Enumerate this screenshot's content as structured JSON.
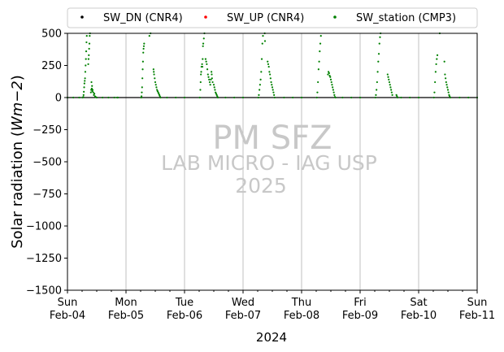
{
  "chart_data": {
    "type": "scatter",
    "title": "",
    "xlabel": "2024",
    "ylabel_prefix": "Solar radiation (",
    "ylabel_unit": "Wm−2",
    "ylabel_suffix": ")",
    "ylim": [
      -1500,
      500
    ],
    "y_ticks": [
      500,
      250,
      0,
      -250,
      -500,
      -750,
      -1000,
      -1250,
      -1500
    ],
    "x_range": [
      "2024-02-04",
      "2024-02-11"
    ],
    "x_ticks": [
      {
        "day": "Sun",
        "date": "Feb-04"
      },
      {
        "day": "Mon",
        "date": "Feb-05"
      },
      {
        "day": "Tue",
        "date": "Feb-06"
      },
      {
        "day": "Wed",
        "date": "Feb-07"
      },
      {
        "day": "Thu",
        "date": "Feb-08"
      },
      {
        "day": "Fri",
        "date": "Feb-09"
      },
      {
        "day": "Sat",
        "date": "Feb-10"
      },
      {
        "day": "Sun",
        "date": "Feb-11"
      }
    ],
    "grid": "vertical at day ticks",
    "legend": {
      "placement": "top",
      "entries": [
        {
          "name": "SW_DN (CNR4)",
          "color": "#000000"
        },
        {
          "name": "SW_UP (CNR4)",
          "color": "#ff0000"
        },
        {
          "name": "SW_station (CMP3)",
          "color": "#008000"
        }
      ]
    },
    "watermark": {
      "line1": "PM SFZ",
      "line2": "LAB MICRO - IAG USP",
      "line3": "2025"
    },
    "series": [
      {
        "name": "SW_DN (CNR4)",
        "values": []
      },
      {
        "name": "SW_UP (CNR4)",
        "values": []
      },
      {
        "name": "SW_station (CMP3)",
        "values": [
          [
            0.0,
            0
          ],
          [
            0.1,
            0
          ],
          [
            0.2,
            0
          ],
          [
            0.26,
            0
          ],
          [
            0.27,
            5
          ],
          [
            0.275,
            20
          ],
          [
            0.28,
            45
          ],
          [
            0.285,
            80
          ],
          [
            0.29,
            110
          ],
          [
            0.295,
            130
          ],
          [
            0.3,
            150
          ],
          [
            0.305,
            200
          ],
          [
            0.31,
            250
          ],
          [
            0.315,
            300
          ],
          [
            0.32,
            360
          ],
          [
            0.325,
            430
          ],
          [
            0.33,
            480
          ],
          [
            0.355,
            260
          ],
          [
            0.36,
            300
          ],
          [
            0.365,
            330
          ],
          [
            0.37,
            380
          ],
          [
            0.375,
            420
          ],
          [
            0.38,
            480
          ],
          [
            0.385,
            500
          ],
          [
            0.4,
            40
          ],
          [
            0.405,
            60
          ],
          [
            0.41,
            120
          ],
          [
            0.415,
            70
          ],
          [
            0.42,
            90
          ],
          [
            0.425,
            50
          ],
          [
            0.43,
            60
          ],
          [
            0.44,
            40
          ],
          [
            0.45,
            20
          ],
          [
            0.46,
            30
          ],
          [
            0.47,
            10
          ],
          [
            0.48,
            5
          ],
          [
            0.49,
            2
          ],
          [
            0.5,
            0
          ],
          [
            0.6,
            0
          ],
          [
            0.7,
            0
          ],
          [
            0.8,
            0
          ],
          [
            0.85,
            0
          ],
          [
            0.86,
            0
          ],
          [
            1.26,
            0
          ],
          [
            1.265,
            10
          ],
          [
            1.27,
            40
          ],
          [
            1.275,
            80
          ],
          [
            1.28,
            150
          ],
          [
            1.285,
            220
          ],
          [
            1.29,
            280
          ],
          [
            1.295,
            350
          ],
          [
            1.3,
            380
          ],
          [
            1.305,
            400
          ],
          [
            1.31,
            420
          ],
          [
            1.4,
            480
          ],
          [
            1.42,
            500
          ],
          [
            1.47,
            220
          ],
          [
            1.475,
            200
          ],
          [
            1.48,
            180
          ],
          [
            1.49,
            150
          ],
          [
            1.5,
            120
          ],
          [
            1.51,
            100
          ],
          [
            1.52,
            80
          ],
          [
            1.53,
            60
          ],
          [
            1.54,
            50
          ],
          [
            1.55,
            40
          ],
          [
            1.56,
            30
          ],
          [
            1.57,
            20
          ],
          [
            1.58,
            10
          ],
          [
            1.59,
            0
          ],
          [
            1.7,
            0
          ],
          [
            1.85,
            0
          ],
          [
            2.0,
            0
          ],
          [
            2.26,
            0
          ],
          [
            2.27,
            60
          ],
          [
            2.275,
            120
          ],
          [
            2.28,
            180
          ],
          [
            2.285,
            200
          ],
          [
            2.29,
            240
          ],
          [
            2.3,
            260
          ],
          [
            2.305,
            240
          ],
          [
            2.31,
            300
          ],
          [
            2.315,
            400
          ],
          [
            2.32,
            420
          ],
          [
            2.33,
            460
          ],
          [
            2.34,
            500
          ],
          [
            2.36,
            300
          ],
          [
            2.37,
            280
          ],
          [
            2.38,
            260
          ],
          [
            2.39,
            220
          ],
          [
            2.4,
            180
          ],
          [
            2.41,
            160
          ],
          [
            2.42,
            140
          ],
          [
            2.43,
            120
          ],
          [
            2.44,
            100
          ],
          [
            2.45,
            140
          ],
          [
            2.46,
            200
          ],
          [
            2.465,
            180
          ],
          [
            2.47,
            150
          ],
          [
            2.48,
            120
          ],
          [
            2.5,
            100
          ],
          [
            2.51,
            80
          ],
          [
            2.52,
            60
          ],
          [
            2.53,
            40
          ],
          [
            2.54,
            30
          ],
          [
            2.55,
            20
          ],
          [
            2.56,
            10
          ],
          [
            2.57,
            0
          ],
          [
            2.7,
            0
          ],
          [
            2.85,
            0
          ],
          [
            3.0,
            0
          ],
          [
            3.26,
            0
          ],
          [
            3.27,
            20
          ],
          [
            3.28,
            60
          ],
          [
            3.29,
            100
          ],
          [
            3.3,
            140
          ],
          [
            3.31,
            200
          ],
          [
            3.32,
            300
          ],
          [
            3.33,
            420
          ],
          [
            3.34,
            480
          ],
          [
            3.37,
            500
          ],
          [
            3.375,
            440
          ],
          [
            3.42,
            280
          ],
          [
            3.43,
            260
          ],
          [
            3.44,
            240
          ],
          [
            3.45,
            200
          ],
          [
            3.46,
            180
          ],
          [
            3.47,
            150
          ],
          [
            3.48,
            120
          ],
          [
            3.49,
            100
          ],
          [
            3.5,
            80
          ],
          [
            3.51,
            60
          ],
          [
            3.52,
            40
          ],
          [
            3.53,
            20
          ],
          [
            3.54,
            0
          ],
          [
            3.7,
            0
          ],
          [
            3.85,
            0
          ],
          [
            4.0,
            0
          ],
          [
            4.26,
            0
          ],
          [
            4.27,
            40
          ],
          [
            4.28,
            120
          ],
          [
            4.29,
            220
          ],
          [
            4.3,
            280
          ],
          [
            4.31,
            360
          ],
          [
            4.32,
            420
          ],
          [
            4.33,
            480
          ],
          [
            4.45,
            180
          ],
          [
            4.46,
            200
          ],
          [
            4.47,
            190
          ],
          [
            4.48,
            170
          ],
          [
            4.49,
            160
          ],
          [
            4.5,
            140
          ],
          [
            4.51,
            120
          ],
          [
            4.52,
            100
          ],
          [
            4.53,
            80
          ],
          [
            4.54,
            60
          ],
          [
            4.55,
            40
          ],
          [
            4.56,
            20
          ],
          [
            4.57,
            5
          ],
          [
            4.58,
            0
          ],
          [
            4.7,
            0
          ],
          [
            4.85,
            0
          ],
          [
            5.0,
            0
          ],
          [
            5.26,
            0
          ],
          [
            5.27,
            20
          ],
          [
            5.28,
            60
          ],
          [
            5.29,
            120
          ],
          [
            5.3,
            200
          ],
          [
            5.31,
            280
          ],
          [
            5.32,
            340
          ],
          [
            5.33,
            420
          ],
          [
            5.34,
            470
          ],
          [
            5.35,
            500
          ],
          [
            5.47,
            180
          ],
          [
            5.48,
            160
          ],
          [
            5.49,
            140
          ],
          [
            5.5,
            120
          ],
          [
            5.51,
            100
          ],
          [
            5.52,
            80
          ],
          [
            5.53,
            60
          ],
          [
            5.54,
            40
          ],
          [
            5.55,
            20
          ],
          [
            5.62,
            20
          ],
          [
            5.63,
            10
          ],
          [
            5.64,
            0
          ],
          [
            5.7,
            0
          ],
          [
            5.85,
            0
          ],
          [
            6.0,
            0
          ],
          [
            6.26,
            0
          ],
          [
            6.27,
            40
          ],
          [
            6.28,
            120
          ],
          [
            6.29,
            200
          ],
          [
            6.3,
            260
          ],
          [
            6.31,
            300
          ],
          [
            6.32,
            330
          ],
          [
            6.36,
            520
          ],
          [
            6.44,
            280
          ],
          [
            6.45,
            180
          ],
          [
            6.46,
            150
          ],
          [
            6.47,
            120
          ],
          [
            6.48,
            100
          ],
          [
            6.49,
            80
          ],
          [
            6.5,
            60
          ],
          [
            6.51,
            40
          ],
          [
            6.52,
            20
          ],
          [
            6.53,
            10
          ],
          [
            6.54,
            0
          ],
          [
            6.7,
            0
          ],
          [
            6.85,
            0
          ],
          [
            7.0,
            0
          ]
        ]
      }
    ]
  }
}
